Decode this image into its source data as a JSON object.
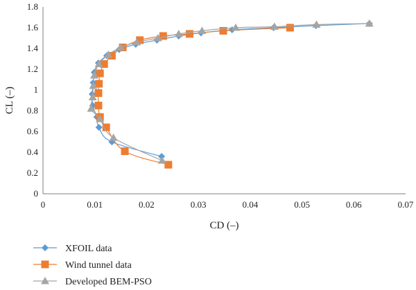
{
  "chart_data": {
    "type": "scatter",
    "xlabel": "CD (–)",
    "ylabel": "CL (–)",
    "xlim": [
      0,
      0.07
    ],
    "ylim": [
      0,
      1.8
    ],
    "x_ticks": [
      0,
      0.01,
      0.02,
      0.03,
      0.04,
      0.05,
      0.06,
      0.07
    ],
    "y_ticks": [
      0,
      0.2,
      0.4,
      0.6,
      0.8,
      1,
      1.2,
      1.4,
      1.6,
      1.8
    ],
    "grid": false,
    "legend_position": "bottom",
    "series": [
      {
        "name": "XFOIL data",
        "marker": "diamond",
        "color": "#5b9bd5",
        "points": [
          [
            0.0229,
            0.36
          ],
          [
            0.0133,
            0.5
          ],
          [
            0.0108,
            0.64
          ],
          [
            0.0104,
            0.74
          ],
          [
            0.0096,
            0.85
          ],
          [
            0.0095,
            0.96
          ],
          [
            0.0097,
            1.07
          ],
          [
            0.0099,
            1.17
          ],
          [
            0.0107,
            1.26
          ],
          [
            0.0123,
            1.33
          ],
          [
            0.0147,
            1.39
          ],
          [
            0.0179,
            1.44
          ],
          [
            0.022,
            1.48
          ],
          [
            0.0262,
            1.52
          ],
          [
            0.0305,
            1.55
          ],
          [
            0.0365,
            1.58
          ],
          [
            0.0445,
            1.6
          ],
          [
            0.0527,
            1.62
          ],
          [
            0.063,
            1.64
          ]
        ]
      },
      {
        "name": "Wind tunnel data",
        "marker": "square",
        "color": "#ed7d31",
        "points": [
          [
            0.0242,
            0.28
          ],
          [
            0.0158,
            0.41
          ],
          [
            0.0122,
            0.64
          ],
          [
            0.011,
            0.74
          ],
          [
            0.0107,
            0.85
          ],
          [
            0.0107,
            0.97
          ],
          [
            0.0108,
            1.06
          ],
          [
            0.011,
            1.16
          ],
          [
            0.0118,
            1.25
          ],
          [
            0.0133,
            1.33
          ],
          [
            0.0154,
            1.41
          ],
          [
            0.0187,
            1.48
          ],
          [
            0.0232,
            1.52
          ],
          [
            0.0283,
            1.54
          ],
          [
            0.0348,
            1.57
          ],
          [
            0.0477,
            1.6
          ]
        ]
      },
      {
        "name": "Developed BEM-PSO",
        "marker": "triangle",
        "color": "#a5a5a5",
        "points": [
          [
            0.023,
            0.32
          ],
          [
            0.0136,
            0.54
          ],
          [
            0.011,
            0.72
          ],
          [
            0.0093,
            0.82
          ],
          [
            0.0096,
            0.93
          ],
          [
            0.0097,
            1.04
          ],
          [
            0.0099,
            1.14
          ],
          [
            0.0108,
            1.25
          ],
          [
            0.0126,
            1.34
          ],
          [
            0.015,
            1.41
          ],
          [
            0.0181,
            1.46
          ],
          [
            0.0222,
            1.5
          ],
          [
            0.0262,
            1.54
          ],
          [
            0.0307,
            1.57
          ],
          [
            0.0372,
            1.6
          ],
          [
            0.0447,
            1.61
          ],
          [
            0.0528,
            1.63
          ],
          [
            0.063,
            1.64
          ]
        ]
      }
    ]
  }
}
